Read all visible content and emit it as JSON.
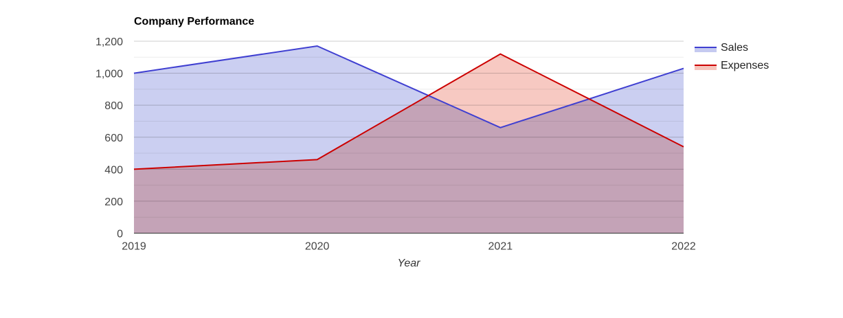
{
  "chart_data": {
    "type": "area",
    "title": "Company Performance",
    "xlabel": "Year",
    "ylabel": "",
    "categories": [
      "2019",
      "2020",
      "2021",
      "2022"
    ],
    "ylim": [
      0,
      1200
    ],
    "yticks": [
      "0",
      "200",
      "400",
      "600",
      "800",
      "1,000",
      "1,200"
    ],
    "ytick_values": [
      0,
      200,
      400,
      600,
      800,
      1000,
      1200
    ],
    "minor_gridlines": true,
    "grid": true,
    "legend_position": "right",
    "series": [
      {
        "name": "Sales",
        "values": [
          1000,
          1170,
          660,
          1030
        ],
        "color": "#3f3fd1",
        "fill": "#c5caf0"
      },
      {
        "name": "Expenses",
        "values": [
          400,
          460,
          1120,
          540
        ],
        "color": "#cc0000",
        "fill": "#f6c3bb"
      }
    ]
  }
}
